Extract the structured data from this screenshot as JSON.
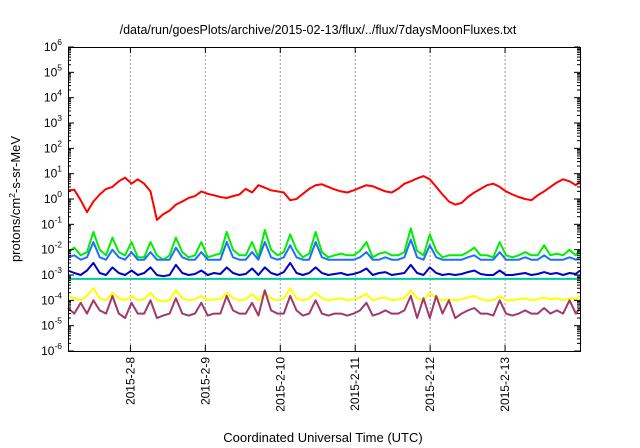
{
  "chart_data": {
    "type": "line",
    "title": "/data/run/goesPlots/archive/2015-02-13/flux/../flux/7daysMoonFluxes.txt",
    "xlabel": "Coordinated Universal Time (UTC)",
    "ylabel": {
      "pre": "protons/cm",
      "sup": "2",
      "post": "-s-sr-MeV"
    },
    "yscale": "log",
    "ylim": [
      1e-06,
      1000000
    ],
    "xlim": [
      "2015-02-07 04:00",
      "2015-02-14 00:00"
    ],
    "grid": true,
    "grid_axis": "x",
    "legend": null,
    "yticks": [
      {
        "base": "10",
        "exp": "6"
      },
      {
        "base": "10",
        "exp": "5"
      },
      {
        "base": "10",
        "exp": "4"
      },
      {
        "base": "10",
        "exp": "3"
      },
      {
        "base": "10",
        "exp": "2"
      },
      {
        "base": "10",
        "exp": "1"
      },
      {
        "base": "10",
        "exp": "0"
      },
      {
        "base": "10",
        "exp": "-1"
      },
      {
        "base": "10",
        "exp": "-2"
      },
      {
        "base": "10",
        "exp": "-3"
      },
      {
        "base": "10",
        "exp": "-4"
      },
      {
        "base": "10",
        "exp": "-5"
      },
      {
        "base": "10",
        "exp": "-6"
      }
    ],
    "xticks": [
      "2015-2-8",
      "2015-2-9",
      "2015-2-10",
      "2015-2-11",
      "2015-2-12",
      "2015-2-13"
    ],
    "x": [
      "2015-02-07 04:00",
      "2015-02-07 06:02",
      "2015-02-07 08:04",
      "2015-02-07 10:06",
      "2015-02-07 12:08",
      "2015-02-07 14:10",
      "2015-02-07 16:12",
      "2015-02-07 18:14",
      "2015-02-07 20:16",
      "2015-02-07 22:18",
      "2015-02-08 00:20",
      "2015-02-08 02:22",
      "2015-02-08 04:24",
      "2015-02-08 06:26",
      "2015-02-08 08:28",
      "2015-02-08 10:30",
      "2015-02-08 12:32",
      "2015-02-08 14:34",
      "2015-02-08 16:36",
      "2015-02-08 18:38",
      "2015-02-08 20:40",
      "2015-02-08 22:42",
      "2015-02-09 00:44",
      "2015-02-09 02:46",
      "2015-02-09 04:48",
      "2015-02-09 06:50",
      "2015-02-09 08:52",
      "2015-02-09 10:54",
      "2015-02-09 12:56",
      "2015-02-09 14:58",
      "2015-02-09 17:00",
      "2015-02-09 19:02",
      "2015-02-09 21:04",
      "2015-02-09 23:06",
      "2015-02-10 01:08",
      "2015-02-10 03:10",
      "2015-02-10 05:12",
      "2015-02-10 07:14",
      "2015-02-10 09:16",
      "2015-02-10 11:18",
      "2015-02-10 13:20",
      "2015-02-10 15:22",
      "2015-02-10 17:24",
      "2015-02-10 19:26",
      "2015-02-10 21:28",
      "2015-02-10 23:30",
      "2015-02-11 01:32",
      "2015-02-11 03:34",
      "2015-02-11 05:36",
      "2015-02-11 07:38",
      "2015-02-11 09:40",
      "2015-02-11 11:42",
      "2015-02-11 13:44",
      "2015-02-11 15:46",
      "2015-02-11 17:48",
      "2015-02-11 19:50",
      "2015-02-11 21:52",
      "2015-02-11 23:54",
      "2015-02-12 01:56",
      "2015-02-12 03:58",
      "2015-02-12 06:00",
      "2015-02-12 08:02",
      "2015-02-12 10:04",
      "2015-02-12 12:06",
      "2015-02-12 14:08",
      "2015-02-12 16:10",
      "2015-02-12 18:12",
      "2015-02-12 20:14",
      "2015-02-12 22:16",
      "2015-02-13 00:18",
      "2015-02-13 02:20",
      "2015-02-13 04:22",
      "2015-02-13 06:24",
      "2015-02-13 08:26",
      "2015-02-13 10:28",
      "2015-02-13 12:30",
      "2015-02-13 14:32",
      "2015-02-13 16:34",
      "2015-02-13 18:36",
      "2015-02-13 20:38",
      "2015-02-13 22:40",
      "2015-02-14 00:00"
    ],
    "series": [
      {
        "color": "#ff0000",
        "values": [
          2.2,
          2.3,
          0.9,
          0.3,
          0.8,
          1.5,
          2.5,
          3.0,
          5.0,
          7.0,
          4.0,
          6.0,
          4.0,
          2.0,
          0.15,
          0.25,
          0.35,
          0.6,
          0.8,
          1.1,
          1.3,
          2.0,
          1.6,
          1.4,
          1.2,
          1.1,
          1.3,
          1.5,
          2.5,
          1.8,
          3.5,
          2.8,
          2.2,
          2.0,
          1.8,
          0.9,
          1.0,
          1.6,
          2.5,
          3.5,
          3.8,
          3.0,
          2.4,
          2.0,
          1.8,
          2.2,
          2.8,
          3.5,
          3.2,
          2.5,
          2.0,
          1.8,
          2.5,
          4.0,
          5.0,
          6.5,
          8.0,
          6.0,
          3.0,
          1.5,
          0.8,
          0.6,
          0.7,
          1.2,
          1.8,
          2.5,
          3.5,
          4.0,
          3.0,
          2.0,
          1.5,
          1.2,
          1.0,
          0.9,
          1.4,
          2.0,
          3.0,
          4.5,
          6.0,
          5.0,
          3.5,
          5.0
        ]
      },
      {
        "color": "#00ee00",
        "values": [
          0.008,
          0.012,
          0.006,
          0.008,
          0.05,
          0.01,
          0.006,
          0.03,
          0.008,
          0.006,
          0.02,
          0.005,
          0.005,
          0.02,
          0.006,
          0.004,
          0.006,
          0.03,
          0.008,
          0.005,
          0.006,
          0.02,
          0.005,
          0.006,
          0.007,
          0.05,
          0.01,
          0.006,
          0.006,
          0.02,
          0.005,
          0.06,
          0.01,
          0.006,
          0.008,
          0.04,
          0.01,
          0.005,
          0.007,
          0.05,
          0.008,
          0.005,
          0.006,
          0.007,
          0.006,
          0.006,
          0.009,
          0.02,
          0.005,
          0.007,
          0.008,
          0.006,
          0.006,
          0.008,
          0.07,
          0.009,
          0.006,
          0.04,
          0.009,
          0.005,
          0.006,
          0.006,
          0.006,
          0.008,
          0.012,
          0.006,
          0.006,
          0.005,
          0.02,
          0.006,
          0.005,
          0.006,
          0.008,
          0.006,
          0.006,
          0.015,
          0.006,
          0.007,
          0.006,
          0.01,
          0.006,
          0.01
        ]
      },
      {
        "color": "#1e6fff",
        "values": [
          0.005,
          0.006,
          0.004,
          0.005,
          0.02,
          0.005,
          0.004,
          0.01,
          0.005,
          0.004,
          0.008,
          0.004,
          0.004,
          0.008,
          0.004,
          0.004,
          0.004,
          0.012,
          0.005,
          0.004,
          0.004,
          0.008,
          0.004,
          0.004,
          0.004,
          0.02,
          0.005,
          0.004,
          0.004,
          0.008,
          0.004,
          0.02,
          0.005,
          0.004,
          0.005,
          0.015,
          0.005,
          0.004,
          0.004,
          0.02,
          0.005,
          0.004,
          0.004,
          0.004,
          0.004,
          0.004,
          0.005,
          0.008,
          0.004,
          0.004,
          0.005,
          0.004,
          0.004,
          0.005,
          0.025,
          0.005,
          0.004,
          0.015,
          0.005,
          0.004,
          0.004,
          0.004,
          0.004,
          0.005,
          0.006,
          0.004,
          0.004,
          0.004,
          0.008,
          0.004,
          0.004,
          0.004,
          0.005,
          0.004,
          0.004,
          0.006,
          0.004,
          0.004,
          0.004,
          0.005,
          0.004,
          0.005
        ]
      },
      {
        "color": "#0000cc",
        "values": [
          0.0015,
          0.0012,
          0.001,
          0.0015,
          0.003,
          0.0012,
          0.001,
          0.002,
          0.0012,
          0.001,
          0.0015,
          0.001,
          0.0012,
          0.002,
          0.001,
          0.0009,
          0.001,
          0.0025,
          0.0012,
          0.001,
          0.0011,
          0.0015,
          0.001,
          0.0012,
          0.0011,
          0.002,
          0.0012,
          0.001,
          0.0011,
          0.0018,
          0.001,
          0.002,
          0.0012,
          0.001,
          0.0013,
          0.003,
          0.0012,
          0.001,
          0.0012,
          0.002,
          0.0012,
          0.001,
          0.0011,
          0.0012,
          0.001,
          0.0011,
          0.0013,
          0.0018,
          0.001,
          0.0012,
          0.0013,
          0.001,
          0.0011,
          0.0012,
          0.0025,
          0.0012,
          0.001,
          0.002,
          0.0012,
          0.001,
          0.0011,
          0.001,
          0.0011,
          0.0013,
          0.0015,
          0.0011,
          0.001,
          0.001,
          0.0015,
          0.001,
          0.001,
          0.0011,
          0.0012,
          0.001,
          0.0011,
          0.0013,
          0.0011,
          0.0012,
          0.001,
          0.0012,
          0.0011,
          0.0015
        ]
      },
      {
        "color": "#00c8a0",
        "values": [
          0.0007,
          0.0007,
          0.0007,
          0.0007,
          0.0007,
          0.0007,
          0.0007,
          0.0007,
          0.0007,
          0.0007,
          0.0007,
          0.0007,
          0.0007,
          0.0007,
          0.0007,
          0.0007,
          0.0007,
          0.0007,
          0.0007,
          0.0007,
          0.0007,
          0.0007,
          0.0007,
          0.0007,
          0.0007,
          0.0007,
          0.0007,
          0.0007,
          0.0007,
          0.0007,
          0.0007,
          0.0007,
          0.0007,
          0.0007,
          0.0007,
          0.0007,
          0.0007,
          0.0007,
          0.0007,
          0.0007,
          0.0007,
          0.0007,
          0.0007,
          0.0007,
          0.0007,
          0.0007,
          0.0007,
          0.0007,
          0.0007,
          0.0007,
          0.0007,
          0.0007,
          0.0007,
          0.0007,
          0.0007,
          0.0007,
          0.0007,
          0.0007,
          0.0007,
          0.0007,
          0.0007,
          0.0007,
          0.0007,
          0.0007,
          0.0007,
          0.0007,
          0.0007,
          0.0007,
          0.0007,
          0.0007,
          0.0007,
          0.0007,
          0.0007,
          0.0007,
          0.0007,
          0.0007,
          0.0007,
          0.0007,
          0.0007,
          0.0007,
          0.0007,
          0.0007
        ]
      },
      {
        "color": "#ffff00",
        "values": [
          0.00015,
          0.00012,
          0.0001,
          0.00015,
          0.0003,
          0.00012,
          0.0001,
          0.0002,
          0.00012,
          0.0001,
          0.00015,
          0.0001,
          0.00011,
          0.0002,
          0.0001,
          9e-05,
          0.0001,
          0.00025,
          0.00012,
          0.0001,
          0.00011,
          0.00015,
          0.0001,
          0.00011,
          0.00011,
          0.0002,
          0.00012,
          0.0001,
          0.00011,
          0.00018,
          0.0001,
          0.0002,
          0.00012,
          0.0001,
          0.00012,
          0.0003,
          0.00012,
          0.0001,
          0.00012,
          0.0002,
          0.00012,
          0.0001,
          0.00011,
          0.00012,
          0.0001,
          0.00011,
          0.00013,
          0.00018,
          0.0001,
          0.00012,
          0.00013,
          0.0001,
          0.00011,
          0.00012,
          0.00025,
          0.00012,
          0.0001,
          0.0002,
          0.00012,
          0.0001,
          0.00011,
          0.0001,
          0.00011,
          0.00013,
          0.00015,
          0.00011,
          0.0001,
          0.0001,
          0.00015,
          0.0001,
          0.0001,
          0.00011,
          0.00012,
          0.0001,
          0.00011,
          0.00013,
          0.00011,
          0.00012,
          0.0001,
          0.00012,
          0.00011,
          0.00015
        ]
      },
      {
        "color": "#a0386a",
        "values": [
          5e-05,
          3e-05,
          8e-05,
          3e-05,
          0.0001,
          4e-05,
          3e-05,
          0.00015,
          3e-05,
          2e-05,
          8e-05,
          3e-05,
          3e-05,
          0.0001,
          2e-05,
          2.5e-05,
          3e-05,
          0.00012,
          3e-05,
          2.5e-05,
          3e-05,
          8e-05,
          2.5e-05,
          3e-05,
          3e-05,
          0.00015,
          4e-05,
          3e-05,
          3e-05,
          8e-05,
          2.5e-05,
          0.00025,
          4e-05,
          3e-05,
          3e-05,
          0.00015,
          4e-05,
          2.5e-05,
          3e-05,
          0.0001,
          3e-05,
          2.5e-05,
          3e-05,
          3e-05,
          2.5e-05,
          3e-05,
          4e-05,
          8e-05,
          2.5e-05,
          3e-05,
          4e-05,
          3e-05,
          3e-05,
          4e-05,
          0.00015,
          2e-05,
          0.00012,
          2e-05,
          0.00015,
          3e-05,
          0.0001,
          2e-05,
          3e-05,
          4e-05,
          5e-05,
          3e-05,
          3e-05,
          2.5e-05,
          0.0001,
          3e-05,
          2.5e-05,
          3e-05,
          4e-05,
          3e-05,
          3e-05,
          5e-05,
          3e-05,
          4e-05,
          3e-05,
          0.0001,
          3e-05,
          5e-05
        ]
      }
    ]
  }
}
